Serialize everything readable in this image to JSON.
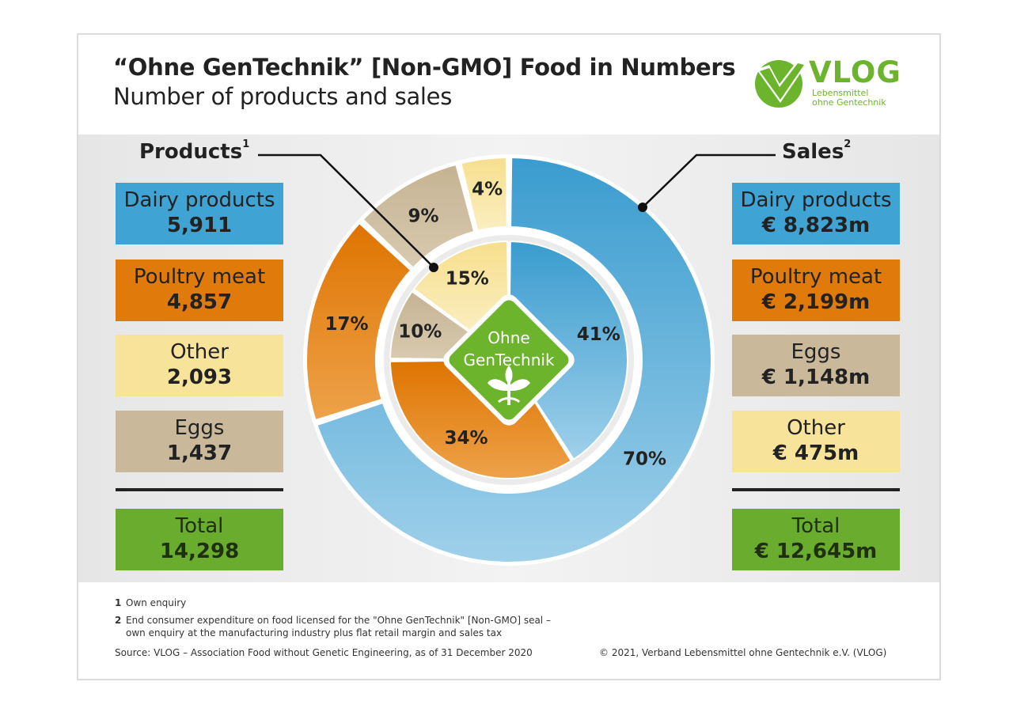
{
  "header": {
    "title": "“Ohne GenTechnik” [Non-GMO] Food in Numbers",
    "subtitle": "Number of products and sales"
  },
  "logo": {
    "name": "VLOG",
    "line1": "Lebensmittel",
    "line2": "ohne Gentechnik"
  },
  "seal": {
    "line1": "Ohne",
    "line2": "GenTechnik"
  },
  "products": {
    "heading": "Products",
    "footnote_mark": "1",
    "items": [
      {
        "label": "Dairy products",
        "value": "5,911",
        "color": "#3fa3d4"
      },
      {
        "label": "Poultry meat",
        "value": "4,857",
        "color": "#e07b0b"
      },
      {
        "label": "Other",
        "value": "2,093",
        "color": "#f8e39a"
      },
      {
        "label": "Eggs",
        "value": "1,437",
        "color": "#c9b99a"
      }
    ],
    "total": {
      "label": "Total",
      "value": "14,298",
      "color": "#6aad2e"
    }
  },
  "sales": {
    "heading": "Sales",
    "footnote_mark": "2",
    "items": [
      {
        "label": "Dairy products",
        "value": "€ 8,823m",
        "color": "#3fa3d4"
      },
      {
        "label": "Poultry meat",
        "value": "€ 2,199m",
        "color": "#e07b0b"
      },
      {
        "label": "Eggs",
        "value": "€ 1,148m",
        "color": "#c9b99a"
      },
      {
        "label": "Other",
        "value": "€ 475m",
        "color": "#f8e39a"
      }
    ],
    "total": {
      "label": "Total",
      "value": "€ 12,645m",
      "color": "#6aad2e"
    }
  },
  "footnotes": {
    "n1_mark": "1",
    "n1_text": "Own enquiry",
    "n2_mark": "2",
    "n2_line1": "End consumer expenditure on food licensed for the \"Ohne GenTechnik\" [Non-GMO] seal –",
    "n2_line2": "own enquiry at the manufacturing industry plus flat retail margin and sales tax",
    "source": "Source: VLOG – Association Food without Genetic Engineering, as of 31 December 2020",
    "copyright": "© 2021, Verband Lebensmittel ohne Gentechnik e.V. (VLOG)"
  },
  "chart_data": [
    {
      "type": "pie",
      "ring": "inner",
      "categories": [
        "Dairy products",
        "Poultry meat",
        "Eggs",
        "Other"
      ],
      "values": [
        41,
        34,
        10,
        15
      ],
      "labels": [
        "41%",
        "34%",
        "10%",
        "15%"
      ],
      "colors": [
        "#3fa3d4",
        "#e07b0b",
        "#c9b99a",
        "#f8e39a"
      ]
    },
    {
      "type": "pie",
      "ring": "outer",
      "categories": [
        "Dairy products",
        "Poultry meat",
        "Eggs",
        "Other"
      ],
      "values": [
        70,
        17,
        9,
        4
      ],
      "labels": [
        "70%",
        "17%",
        "9%",
        "4%"
      ],
      "colors": [
        "#3fa3d4",
        "#e07b0b",
        "#c9b99a",
        "#f8e39a"
      ]
    }
  ]
}
